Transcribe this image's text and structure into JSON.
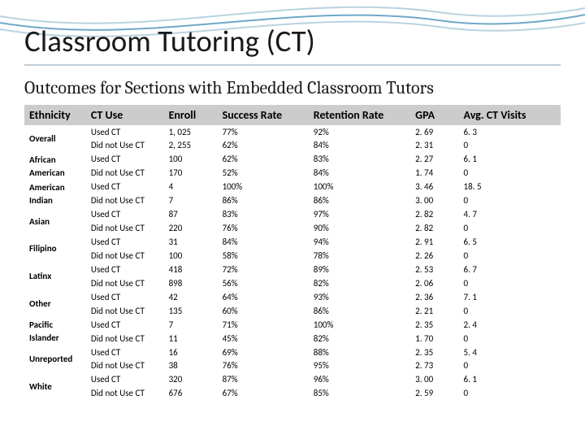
{
  "colors": {
    "background": "#ffffff",
    "title_text": "#1a1a1a",
    "title_rule": "#c0cdd6",
    "header_bg": "#cccccc",
    "header_text": "#000000",
    "cell_text": "#000000",
    "wave_stroke": "#6fa8c7",
    "wave_stroke_light": "#b9d2e0"
  },
  "typography": {
    "title_fontsize": 37,
    "subtitle_fontsize": 22,
    "header_fontsize": 14,
    "cell_fontsize": 11
  },
  "title": "Classroom Tutoring (CT)",
  "subtitle": "Outcomes for Sections with Embedded Classroom Tutors",
  "table": {
    "columns": [
      "Ethnicity",
      "CT Use",
      "Enroll",
      "Success Rate",
      "Retention Rate",
      "GPA",
      "Avg. CT Visits"
    ],
    "groups": [
      {
        "ethnicity": "Overall",
        "used": {
          "ct_use": "Used CT",
          "enroll": "1, 025",
          "success": "77%",
          "retention": "92%",
          "gpa": "2. 69",
          "visits": "6. 3"
        },
        "not": {
          "ct_use": "Did not Use CT",
          "enroll": "2, 255",
          "success": "62%",
          "retention": "84%",
          "gpa": "2. 31",
          "visits": "0"
        }
      },
      {
        "ethnicity": "African American",
        "used": {
          "ct_use": "Used CT",
          "enroll": "100",
          "success": "62%",
          "retention": "83%",
          "gpa": "2. 27",
          "visits": "6. 1"
        },
        "not": {
          "ct_use": "Did not Use CT",
          "enroll": "170",
          "success": "52%",
          "retention": "84%",
          "gpa": "1. 74",
          "visits": "0"
        }
      },
      {
        "ethnicity": "American Indian",
        "used": {
          "ct_use": "Used CT",
          "enroll": "4",
          "success": "100%",
          "retention": "100%",
          "gpa": "3. 46",
          "visits": "18. 5"
        },
        "not": {
          "ct_use": "Did not Use CT",
          "enroll": "7",
          "success": "86%",
          "retention": "86%",
          "gpa": "3. 00",
          "visits": "0"
        }
      },
      {
        "ethnicity": "Asian",
        "used": {
          "ct_use": "Used CT",
          "enroll": "87",
          "success": "83%",
          "retention": "97%",
          "gpa": "2. 82",
          "visits": "4. 7"
        },
        "not": {
          "ct_use": "Did not Use CT",
          "enroll": "220",
          "success": "76%",
          "retention": "90%",
          "gpa": "2. 82",
          "visits": "0"
        }
      },
      {
        "ethnicity": "Filipino",
        "used": {
          "ct_use": "Used CT",
          "enroll": "31",
          "success": "84%",
          "retention": "94%",
          "gpa": "2. 91",
          "visits": "6. 5"
        },
        "not": {
          "ct_use": "Did not Use CT",
          "enroll": "100",
          "success": "58%",
          "retention": "78%",
          "gpa": "2. 26",
          "visits": "0"
        }
      },
      {
        "ethnicity": "Latinx",
        "used": {
          "ct_use": "Used CT",
          "enroll": "418",
          "success": "72%",
          "retention": "89%",
          "gpa": "2. 53",
          "visits": "6. 7"
        },
        "not": {
          "ct_use": "Did not Use CT",
          "enroll": "898",
          "success": "56%",
          "retention": "82%",
          "gpa": "2. 06",
          "visits": "0"
        }
      },
      {
        "ethnicity": "Other",
        "used": {
          "ct_use": "Used CT",
          "enroll": "42",
          "success": "64%",
          "retention": "93%",
          "gpa": "2. 36",
          "visits": "7. 1"
        },
        "not": {
          "ct_use": "Did not Use CT",
          "enroll": "135",
          "success": "60%",
          "retention": "86%",
          "gpa": "2. 21",
          "visits": "0"
        }
      },
      {
        "ethnicity": "Pacific Islander",
        "used": {
          "ct_use": "Used CT",
          "enroll": "7",
          "success": "71%",
          "retention": "100%",
          "gpa": "2. 35",
          "visits": "2. 4"
        },
        "not": {
          "ct_use": "Did not Use CT",
          "enroll": "11",
          "success": "45%",
          "retention": "82%",
          "gpa": "1. 70",
          "visits": "0"
        }
      },
      {
        "ethnicity": "Unreported",
        "used": {
          "ct_use": "Used CT",
          "enroll": "16",
          "success": "69%",
          "retention": "88%",
          "gpa": "2. 35",
          "visits": "5. 4"
        },
        "not": {
          "ct_use": "Did not Use CT",
          "enroll": "38",
          "success": "76%",
          "retention": "95%",
          "gpa": "2. 73",
          "visits": "0"
        }
      },
      {
        "ethnicity": "White",
        "used": {
          "ct_use": "Used CT",
          "enroll": "320",
          "success": "87%",
          "retention": "96%",
          "gpa": "3. 00",
          "visits": "6. 1"
        },
        "not": {
          "ct_use": "Did not Use CT",
          "enroll": "676",
          "success": "67%",
          "retention": "85%",
          "gpa": "2. 59",
          "visits": "0"
        }
      }
    ]
  }
}
